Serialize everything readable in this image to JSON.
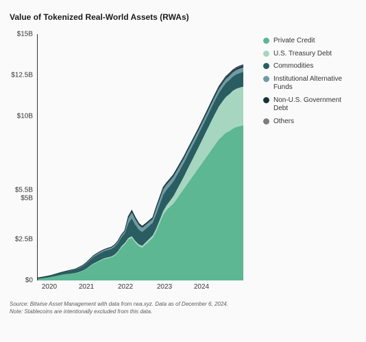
{
  "title": "Value of Tokenized Real-World Assets (RWAs)",
  "chart": {
    "type": "stacked-area",
    "background_color": "#fafafa",
    "title_fontsize": 12,
    "label_fontsize": 10,
    "axis_color": "#333333",
    "x": {
      "ticks": [
        "2020",
        "2021",
        "2022",
        "2023",
        "2024"
      ],
      "tick_positions": [
        0.06,
        0.24,
        0.43,
        0.62,
        0.8
      ]
    },
    "y": {
      "lim": [
        0,
        15
      ],
      "unit": "B",
      "ticks": [
        {
          "v": 0,
          "label": "$0"
        },
        {
          "v": 2.5,
          "label": "$2.5B"
        },
        {
          "v": 5,
          "label": "$5B"
        },
        {
          "v": 5.5,
          "label": "$5.5B"
        },
        {
          "v": 10,
          "label": "$10B"
        },
        {
          "v": 12.5,
          "label": "$12.5B"
        },
        {
          "v": 15,
          "label": "$15B"
        }
      ]
    },
    "n_points": 60,
    "series": [
      {
        "name": "Private Credit",
        "color": "#5cb792",
        "values": [
          0.1,
          0.12,
          0.15,
          0.18,
          0.22,
          0.26,
          0.3,
          0.35,
          0.38,
          0.4,
          0.42,
          0.45,
          0.5,
          0.58,
          0.7,
          0.85,
          1.0,
          1.1,
          1.2,
          1.3,
          1.35,
          1.4,
          1.5,
          1.7,
          2.0,
          2.2,
          2.5,
          2.6,
          2.3,
          2.1,
          2.0,
          2.2,
          2.4,
          2.6,
          3.0,
          3.5,
          4.0,
          4.3,
          4.5,
          4.7,
          5.0,
          5.3,
          5.6,
          5.9,
          6.2,
          6.5,
          6.8,
          7.1,
          7.4,
          7.7,
          8.0,
          8.3,
          8.6,
          8.8,
          9.0,
          9.1,
          9.25,
          9.35,
          9.4,
          9.45
        ]
      },
      {
        "name": "U.S. Treasury Debt",
        "color": "#a6d6bf",
        "values": [
          0.0,
          0.0,
          0.0,
          0.0,
          0.0,
          0.0,
          0.0,
          0.0,
          0.0,
          0.0,
          0.01,
          0.01,
          0.02,
          0.02,
          0.02,
          0.03,
          0.03,
          0.03,
          0.04,
          0.04,
          0.05,
          0.05,
          0.06,
          0.06,
          0.07,
          0.08,
          0.08,
          0.09,
          0.1,
          0.1,
          0.11,
          0.12,
          0.13,
          0.14,
          0.16,
          0.18,
          0.22,
          0.28,
          0.36,
          0.45,
          0.55,
          0.65,
          0.75,
          0.88,
          1.0,
          1.12,
          1.25,
          1.38,
          1.52,
          1.65,
          1.78,
          1.9,
          2.0,
          2.1,
          2.18,
          2.25,
          2.3,
          2.33,
          2.35,
          2.36
        ]
      },
      {
        "name": "Commodities",
        "color": "#2a5d62",
        "values": [
          0.05,
          0.06,
          0.07,
          0.08,
          0.09,
          0.1,
          0.12,
          0.14,
          0.16,
          0.18,
          0.2,
          0.22,
          0.25,
          0.28,
          0.32,
          0.36,
          0.4,
          0.43,
          0.43,
          0.44,
          0.45,
          0.46,
          0.48,
          0.51,
          0.55,
          0.6,
          0.9,
          1.1,
          1.0,
          0.9,
          0.85,
          0.82,
          0.8,
          0.78,
          0.9,
          0.95,
          1.0,
          0.95,
          0.92,
          0.9,
          0.88,
          0.86,
          0.84,
          0.83,
          0.82,
          0.81,
          0.8,
          0.8,
          0.8,
          0.8,
          0.81,
          0.82,
          0.83,
          0.84,
          0.85,
          0.86,
          0.87,
          0.88,
          0.89,
          0.9
        ]
      },
      {
        "name": "Institutional Alternative Funds",
        "color": "#6e9ba5",
        "values": [
          0.01,
          0.01,
          0.01,
          0.01,
          0.01,
          0.02,
          0.02,
          0.02,
          0.02,
          0.03,
          0.03,
          0.03,
          0.04,
          0.04,
          0.05,
          0.05,
          0.06,
          0.06,
          0.07,
          0.07,
          0.08,
          0.08,
          0.09,
          0.09,
          0.1,
          0.11,
          0.3,
          0.35,
          0.32,
          0.28,
          0.25,
          0.24,
          0.23,
          0.22,
          0.3,
          0.32,
          0.33,
          0.31,
          0.3,
          0.29,
          0.28,
          0.27,
          0.26,
          0.26,
          0.25,
          0.25,
          0.24,
          0.24,
          0.24,
          0.24,
          0.24,
          0.24,
          0.25,
          0.25,
          0.25,
          0.26,
          0.26,
          0.26,
          0.27,
          0.27
        ]
      },
      {
        "name": "Non-U.S. Government Debt",
        "color": "#16333a",
        "values": [
          0.0,
          0.0,
          0.0,
          0.0,
          0.0,
          0.0,
          0.0,
          0.0,
          0.0,
          0.0,
          0.0,
          0.0,
          0.01,
          0.01,
          0.01,
          0.01,
          0.01,
          0.02,
          0.02,
          0.02,
          0.02,
          0.02,
          0.02,
          0.03,
          0.03,
          0.03,
          0.08,
          0.09,
          0.08,
          0.07,
          0.06,
          0.06,
          0.06,
          0.06,
          0.08,
          0.08,
          0.08,
          0.08,
          0.08,
          0.08,
          0.08,
          0.08,
          0.08,
          0.08,
          0.08,
          0.08,
          0.08,
          0.08,
          0.08,
          0.09,
          0.09,
          0.09,
          0.09,
          0.09,
          0.1,
          0.1,
          0.1,
          0.1,
          0.11,
          0.11
        ]
      },
      {
        "name": "Others",
        "color": "#7d7d7d",
        "values": [
          0.0,
          0.0,
          0.0,
          0.0,
          0.0,
          0.0,
          0.0,
          0.0,
          0.0,
          0.0,
          0.0,
          0.0,
          0.0,
          0.0,
          0.0,
          0.01,
          0.01,
          0.01,
          0.01,
          0.01,
          0.01,
          0.01,
          0.01,
          0.01,
          0.02,
          0.02,
          0.04,
          0.04,
          0.04,
          0.03,
          0.03,
          0.03,
          0.03,
          0.03,
          0.04,
          0.04,
          0.04,
          0.04,
          0.04,
          0.04,
          0.04,
          0.04,
          0.04,
          0.04,
          0.04,
          0.04,
          0.04,
          0.04,
          0.04,
          0.04,
          0.04,
          0.04,
          0.05,
          0.05,
          0.05,
          0.05,
          0.05,
          0.05,
          0.05,
          0.05
        ]
      }
    ]
  },
  "footnotes": [
    "Source: Bitwise Asset Management with data from rwa.xyz. Data as of December 6, 2024.",
    "Note: Stablecoins are intentionally excluded from this data."
  ]
}
